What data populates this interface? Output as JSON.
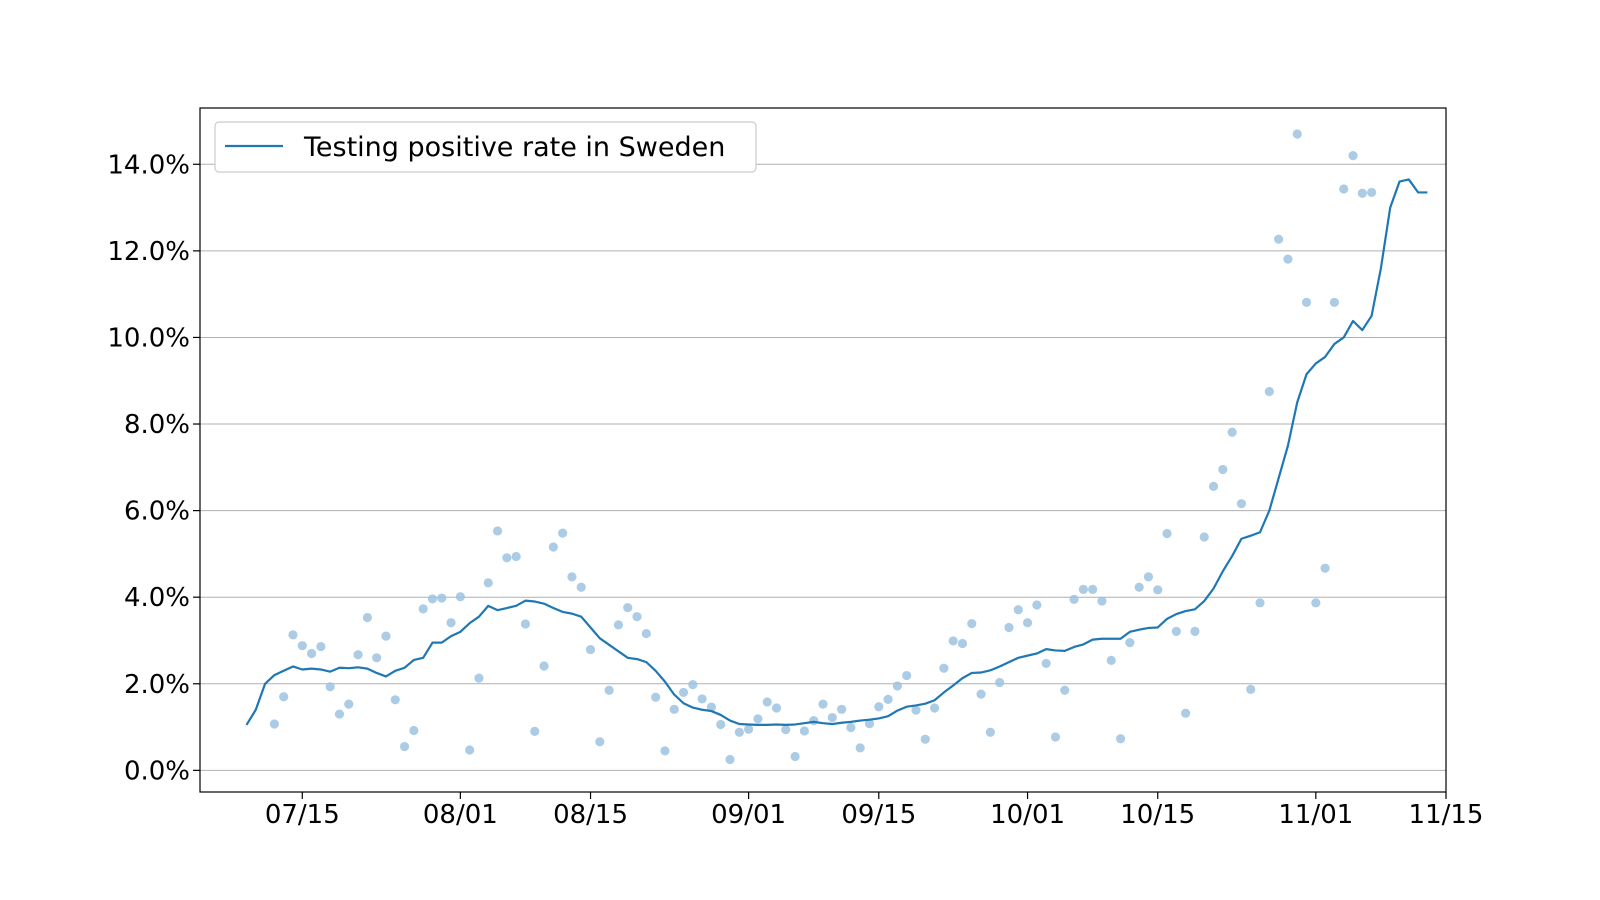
{
  "chart_data": {
    "type": "line",
    "title": "",
    "xlabel": "",
    "ylabel": "",
    "xlim": [
      "2020-07-04",
      "2020-11-15"
    ],
    "ylim": [
      -0.5,
      15.3
    ],
    "y_unit": "%",
    "grid": "horizontal",
    "legend_position": "upper-left",
    "colors": {
      "line": "#1f77b4",
      "points": "#9ec3e0",
      "grid": "#b0b0b0",
      "axes": "#000000"
    },
    "xticks": [
      {
        "date": "2020-07-15",
        "label": "07/15"
      },
      {
        "date": "2020-08-01",
        "label": "08/01"
      },
      {
        "date": "2020-08-15",
        "label": "08/15"
      },
      {
        "date": "2020-09-01",
        "label": "09/01"
      },
      {
        "date": "2020-09-15",
        "label": "09/15"
      },
      {
        "date": "2020-10-01",
        "label": "10/01"
      },
      {
        "date": "2020-10-15",
        "label": "10/15"
      },
      {
        "date": "2020-11-01",
        "label": "11/01"
      },
      {
        "date": "2020-11-15",
        "label": "11/15"
      }
    ],
    "yticks": [
      {
        "value": 0,
        "label": "0.0%"
      },
      {
        "value": 2,
        "label": "2.0%"
      },
      {
        "value": 4,
        "label": "4.0%"
      },
      {
        "value": 6,
        "label": "6.0%"
      },
      {
        "value": 8,
        "label": "8.0%"
      },
      {
        "value": 10,
        "label": "10.0%"
      },
      {
        "value": 12,
        "label": "12.0%"
      },
      {
        "value": 14,
        "label": "14.0%"
      }
    ],
    "series": [
      {
        "name": "Testing positive rate in Sweden",
        "kind": "line",
        "start_date": "2020-07-09",
        "values": [
          1.05,
          1.4,
          2.0,
          2.2,
          2.3,
          2.4,
          2.33,
          2.35,
          2.33,
          2.28,
          2.37,
          2.36,
          2.38,
          2.35,
          2.25,
          2.17,
          2.3,
          2.37,
          2.55,
          2.6,
          2.95,
          2.95,
          3.1,
          3.2,
          3.4,
          3.55,
          3.8,
          3.7,
          3.75,
          3.8,
          3.92,
          3.9,
          3.85,
          3.75,
          3.66,
          3.62,
          3.55,
          3.3,
          3.05,
          2.9,
          2.75,
          2.6,
          2.57,
          2.5,
          2.3,
          2.05,
          1.75,
          1.55,
          1.45,
          1.4,
          1.37,
          1.28,
          1.15,
          1.07,
          1.06,
          1.05,
          1.05,
          1.06,
          1.05,
          1.06,
          1.09,
          1.12,
          1.09,
          1.07,
          1.1,
          1.12,
          1.15,
          1.17,
          1.2,
          1.25,
          1.38,
          1.47,
          1.5,
          1.54,
          1.62,
          1.8,
          1.96,
          2.13,
          2.25,
          2.26,
          2.31,
          2.4,
          2.5,
          2.6,
          2.65,
          2.7,
          2.8,
          2.77,
          2.76,
          2.85,
          2.91,
          3.02,
          3.04,
          3.04,
          3.04,
          3.2,
          3.25,
          3.29,
          3.3,
          3.5,
          3.61,
          3.68,
          3.72,
          3.91,
          4.2,
          4.6,
          4.95,
          5.35,
          5.42,
          5.5,
          6.0,
          6.75,
          7.5,
          8.5,
          9.15,
          9.4,
          9.55,
          9.85,
          10.0,
          10.38,
          10.17,
          10.5,
          11.6,
          13.0,
          13.6,
          13.65,
          13.35,
          13.35
        ]
      },
      {
        "name": "",
        "kind": "scatter",
        "start_date": "2020-07-12",
        "values": [
          1.07,
          1.7,
          3.13,
          2.88,
          2.7,
          2.86,
          1.93,
          1.3,
          1.53,
          2.67,
          3.53,
          2.6,
          3.1,
          1.63,
          0.55,
          0.92,
          3.73,
          3.96,
          3.98,
          3.41,
          4.01,
          0.47,
          2.13,
          4.33,
          5.53,
          4.91,
          4.94,
          3.38,
          0.9,
          2.41,
          5.16,
          5.48,
          4.47,
          4.23,
          2.79,
          0.66,
          1.85,
          3.36,
          3.76,
          3.55,
          3.16,
          1.69,
          0.45,
          1.41,
          1.8,
          1.98,
          1.65,
          1.46,
          1.06,
          0.25,
          0.88,
          0.95,
          1.19,
          1.58,
          1.44,
          0.94,
          0.32,
          0.91,
          1.15,
          1.53,
          1.22,
          1.41,
          0.99,
          0.52,
          1.08,
          1.47,
          1.64,
          1.95,
          2.19,
          1.39,
          0.72,
          1.44,
          2.36,
          2.99,
          2.93,
          3.39,
          1.76,
          0.88,
          2.03,
          3.3,
          3.71,
          3.41,
          3.82,
          2.47,
          0.77,
          1.85,
          3.95,
          4.18,
          4.18,
          3.91,
          2.54,
          0.73,
          2.95,
          4.23,
          4.47,
          4.17,
          5.47,
          3.21,
          1.32,
          3.21,
          5.39,
          6.56,
          6.95,
          7.81,
          6.16,
          1.87,
          3.87,
          8.75,
          12.27,
          11.81,
          14.7,
          10.81,
          3.87,
          4.67,
          10.81,
          13.43,
          14.2,
          13.33,
          13.35
        ]
      }
    ]
  }
}
